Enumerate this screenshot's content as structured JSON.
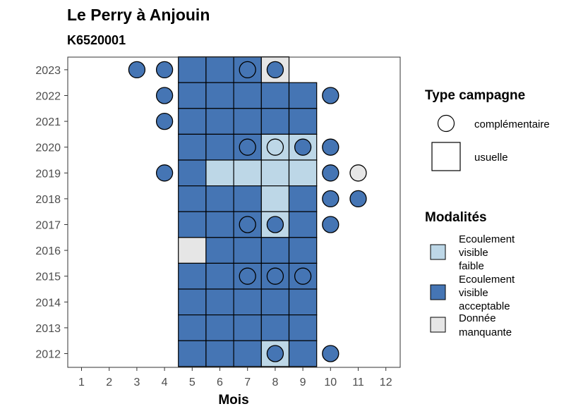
{
  "chart_data": {
    "type": "heatmap",
    "title": "Le Perry à Anjouin",
    "subtitle": "K6520001",
    "xlabel": "Mois",
    "ylabel": "",
    "x_ticks": [
      1,
      2,
      3,
      4,
      5,
      6,
      7,
      8,
      9,
      10,
      11,
      12
    ],
    "y_ticks": [
      2012,
      2013,
      2014,
      2015,
      2016,
      2017,
      2018,
      2019,
      2020,
      2021,
      2022,
      2023
    ],
    "colors": {
      "faible": "#bdd7e7",
      "acceptable": "#4575b4",
      "manquante": "#e6e6e6"
    },
    "legend_type": {
      "title": "Type campagne",
      "items": [
        {
          "key": "complementaire",
          "label": "complémentaire",
          "shape": "circle"
        },
        {
          "key": "usuelle",
          "label": "usuelle",
          "shape": "square"
        }
      ]
    },
    "legend_modalites": {
      "title": "Modalités",
      "items": [
        {
          "key": "faible",
          "lines": [
            "Ecoulement",
            "visible",
            "faible"
          ]
        },
        {
          "key": "acceptable",
          "lines": [
            "Ecoulement",
            "visible",
            "acceptable"
          ]
        },
        {
          "key": "manquante",
          "lines": [
            "Donnée",
            "manquante"
          ]
        }
      ]
    },
    "tiles": [
      {
        "year": 2023,
        "month": 5,
        "mod": "acceptable"
      },
      {
        "year": 2023,
        "month": 6,
        "mod": "acceptable"
      },
      {
        "year": 2023,
        "month": 7,
        "mod": "acceptable"
      },
      {
        "year": 2023,
        "month": 8,
        "mod": "manquante"
      },
      {
        "year": 2022,
        "month": 5,
        "mod": "acceptable"
      },
      {
        "year": 2022,
        "month": 6,
        "mod": "acceptable"
      },
      {
        "year": 2022,
        "month": 7,
        "mod": "acceptable"
      },
      {
        "year": 2022,
        "month": 8,
        "mod": "acceptable"
      },
      {
        "year": 2022,
        "month": 9,
        "mod": "acceptable"
      },
      {
        "year": 2021,
        "month": 5,
        "mod": "acceptable"
      },
      {
        "year": 2021,
        "month": 6,
        "mod": "acceptable"
      },
      {
        "year": 2021,
        "month": 7,
        "mod": "acceptable"
      },
      {
        "year": 2021,
        "month": 8,
        "mod": "acceptable"
      },
      {
        "year": 2021,
        "month": 9,
        "mod": "acceptable"
      },
      {
        "year": 2020,
        "month": 5,
        "mod": "acceptable"
      },
      {
        "year": 2020,
        "month": 6,
        "mod": "acceptable"
      },
      {
        "year": 2020,
        "month": 7,
        "mod": "acceptable"
      },
      {
        "year": 2020,
        "month": 8,
        "mod": "faible"
      },
      {
        "year": 2020,
        "month": 9,
        "mod": "faible"
      },
      {
        "year": 2019,
        "month": 5,
        "mod": "acceptable"
      },
      {
        "year": 2019,
        "month": 6,
        "mod": "faible"
      },
      {
        "year": 2019,
        "month": 7,
        "mod": "faible"
      },
      {
        "year": 2019,
        "month": 8,
        "mod": "faible"
      },
      {
        "year": 2019,
        "month": 9,
        "mod": "faible"
      },
      {
        "year": 2018,
        "month": 5,
        "mod": "acceptable"
      },
      {
        "year": 2018,
        "month": 6,
        "mod": "acceptable"
      },
      {
        "year": 2018,
        "month": 7,
        "mod": "acceptable"
      },
      {
        "year": 2018,
        "month": 8,
        "mod": "faible"
      },
      {
        "year": 2018,
        "month": 9,
        "mod": "acceptable"
      },
      {
        "year": 2017,
        "month": 5,
        "mod": "acceptable"
      },
      {
        "year": 2017,
        "month": 6,
        "mod": "acceptable"
      },
      {
        "year": 2017,
        "month": 7,
        "mod": "acceptable"
      },
      {
        "year": 2017,
        "month": 8,
        "mod": "faible"
      },
      {
        "year": 2017,
        "month": 9,
        "mod": "acceptable"
      },
      {
        "year": 2016,
        "month": 5,
        "mod": "manquante"
      },
      {
        "year": 2016,
        "month": 6,
        "mod": "acceptable"
      },
      {
        "year": 2016,
        "month": 7,
        "mod": "acceptable"
      },
      {
        "year": 2016,
        "month": 8,
        "mod": "acceptable"
      },
      {
        "year": 2016,
        "month": 9,
        "mod": "acceptable"
      },
      {
        "year": 2015,
        "month": 5,
        "mod": "acceptable"
      },
      {
        "year": 2015,
        "month": 6,
        "mod": "acceptable"
      },
      {
        "year": 2015,
        "month": 7,
        "mod": "acceptable"
      },
      {
        "year": 2015,
        "month": 8,
        "mod": "acceptable"
      },
      {
        "year": 2015,
        "month": 9,
        "mod": "acceptable"
      },
      {
        "year": 2014,
        "month": 5,
        "mod": "acceptable"
      },
      {
        "year": 2014,
        "month": 6,
        "mod": "acceptable"
      },
      {
        "year": 2014,
        "month": 7,
        "mod": "acceptable"
      },
      {
        "year": 2014,
        "month": 8,
        "mod": "acceptable"
      },
      {
        "year": 2014,
        "month": 9,
        "mod": "acceptable"
      },
      {
        "year": 2013,
        "month": 5,
        "mod": "acceptable"
      },
      {
        "year": 2013,
        "month": 6,
        "mod": "acceptable"
      },
      {
        "year": 2013,
        "month": 7,
        "mod": "acceptable"
      },
      {
        "year": 2013,
        "month": 8,
        "mod": "acceptable"
      },
      {
        "year": 2013,
        "month": 9,
        "mod": "acceptable"
      },
      {
        "year": 2012,
        "month": 5,
        "mod": "acceptable"
      },
      {
        "year": 2012,
        "month": 6,
        "mod": "acceptable"
      },
      {
        "year": 2012,
        "month": 7,
        "mod": "acceptable"
      },
      {
        "year": 2012,
        "month": 8,
        "mod": "faible"
      },
      {
        "year": 2012,
        "month": 9,
        "mod": "acceptable"
      }
    ],
    "points": [
      {
        "year": 2023,
        "month": 3,
        "mod": "acceptable"
      },
      {
        "year": 2023,
        "month": 4,
        "mod": "acceptable"
      },
      {
        "year": 2023,
        "month": 7,
        "mod": "acceptable"
      },
      {
        "year": 2023,
        "month": 8,
        "mod": "acceptable"
      },
      {
        "year": 2022,
        "month": 4,
        "mod": "acceptable"
      },
      {
        "year": 2022,
        "month": 10,
        "mod": "acceptable"
      },
      {
        "year": 2021,
        "month": 4,
        "mod": "acceptable"
      },
      {
        "year": 2020,
        "month": 7,
        "mod": "acceptable"
      },
      {
        "year": 2020,
        "month": 8,
        "mod": "faible"
      },
      {
        "year": 2020,
        "month": 9,
        "mod": "acceptable"
      },
      {
        "year": 2020,
        "month": 10,
        "mod": "acceptable"
      },
      {
        "year": 2019,
        "month": 4,
        "mod": "acceptable"
      },
      {
        "year": 2019,
        "month": 10,
        "mod": "acceptable"
      },
      {
        "year": 2019,
        "month": 11,
        "mod": "manquante"
      },
      {
        "year": 2018,
        "month": 10,
        "mod": "acceptable"
      },
      {
        "year": 2018,
        "month": 11,
        "mod": "acceptable"
      },
      {
        "year": 2017,
        "month": 7,
        "mod": "acceptable"
      },
      {
        "year": 2017,
        "month": 8,
        "mod": "acceptable"
      },
      {
        "year": 2017,
        "month": 10,
        "mod": "acceptable"
      },
      {
        "year": 2015,
        "month": 7,
        "mod": "acceptable"
      },
      {
        "year": 2015,
        "month": 8,
        "mod": "acceptable"
      },
      {
        "year": 2015,
        "month": 9,
        "mod": "acceptable"
      },
      {
        "year": 2012,
        "month": 8,
        "mod": "acceptable"
      },
      {
        "year": 2012,
        "month": 10,
        "mod": "acceptable"
      }
    ]
  }
}
